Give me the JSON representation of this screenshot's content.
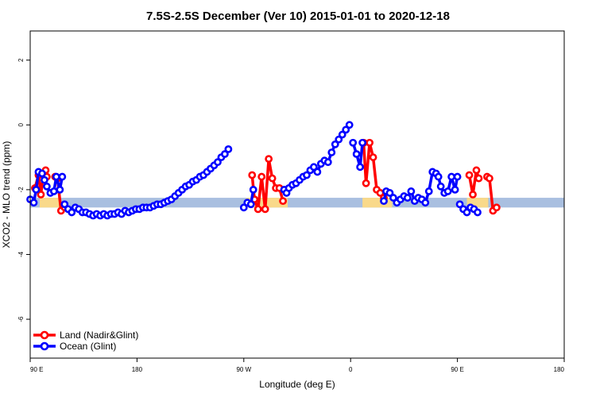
{
  "chart_data": {
    "type": "line",
    "title": "7.5S-2.5S December (Ver 10)   2015-01-01 to 2020-12-18",
    "xlabel": "Longitude (deg E)",
    "ylabel": "XCO2 - MLO trend (ppm)",
    "xlim": [
      90,
      540
    ],
    "ylim": [
      -7.2,
      2.9
    ],
    "xticks": [
      {
        "value": 90,
        "label": "90 E"
      },
      {
        "value": 180,
        "label": "180"
      },
      {
        "value": 270,
        "label": "90 W"
      },
      {
        "value": 360,
        "label": "0"
      },
      {
        "value": 450,
        "label": "90 E"
      },
      {
        "value": 540,
        "label": "180"
      }
    ],
    "yticks": [
      {
        "value": 2,
        "label": "2"
      },
      {
        "value": 0,
        "label": "0"
      },
      {
        "value": -2,
        "label": "-2"
      },
      {
        "value": -4,
        "label": "-4"
      },
      {
        "value": -6,
        "label": "-6"
      }
    ],
    "landmask": {
      "band_y": [
        -2.55,
        -2.25
      ],
      "ocean_color": "#a9bfe0",
      "land_color": "#f9d98a",
      "land_ranges": [
        [
          98,
          116
        ],
        [
          272,
          307
        ],
        [
          370,
          395
        ],
        [
          458,
          476
        ]
      ]
    },
    "series": [
      {
        "name": "Land (Nadir&Glint)",
        "color": "#ff0000",
        "segments": [
          [
            [
              94,
              -1.95
            ],
            [
              97,
              -1.55
            ],
            [
              99,
              -2.15
            ],
            [
              101,
              -1.55
            ],
            [
              103,
              -1.4
            ],
            [
              104,
              -1.6
            ]
          ],
          [
            [
              111,
              -1.6
            ],
            [
              113,
              -1.65
            ],
            [
              116,
              -2.65
            ],
            [
              119,
              -2.55
            ]
          ],
          [
            [
              277,
              -1.55
            ],
            [
              279,
              -2.3
            ],
            [
              282,
              -2.6
            ],
            [
              285,
              -1.6
            ],
            [
              288,
              -2.6
            ],
            [
              291,
              -1.05
            ],
            [
              294,
              -1.65
            ],
            [
              297,
              -1.95
            ],
            [
              300,
              -1.95
            ],
            [
              303,
              -2.35
            ]
          ],
          [
            [
              371,
              -0.55
            ],
            [
              373,
              -1.8
            ],
            [
              376,
              -0.55
            ],
            [
              379,
              -1.0
            ],
            [
              382,
              -2.0
            ],
            [
              385,
              -2.1
            ],
            [
              388,
              -2.25
            ]
          ],
          [
            [
              460,
              -1.55
            ],
            [
              463,
              -2.15
            ],
            [
              466,
              -1.4
            ],
            [
              468,
              -1.65
            ]
          ],
          [
            [
              475,
              -1.6
            ],
            [
              477,
              -1.65
            ],
            [
              480,
              -2.65
            ],
            [
              483,
              -2.55
            ]
          ]
        ]
      },
      {
        "name": "Ocean (Glint)",
        "color": "#0000ff",
        "segments": [
          [
            [
              90,
              -2.3
            ],
            [
              93,
              -2.4
            ],
            [
              95,
              -2.0
            ],
            [
              97,
              -1.45
            ],
            [
              100,
              -1.5
            ],
            [
              102,
              -1.7
            ],
            [
              104,
              -1.9
            ],
            [
              107,
              -2.1
            ],
            [
              110,
              -2.05
            ],
            [
              112,
              -1.6
            ],
            [
              115,
              -2.0
            ],
            [
              117,
              -1.6
            ]
          ],
          [
            [
              119,
              -2.45
            ],
            [
              122,
              -2.6
            ],
            [
              125,
              -2.7
            ],
            [
              128,
              -2.55
            ],
            [
              131,
              -2.6
            ],
            [
              134,
              -2.7
            ],
            [
              137,
              -2.7
            ],
            [
              140,
              -2.75
            ],
            [
              143,
              -2.8
            ],
            [
              146,
              -2.75
            ],
            [
              149,
              -2.8
            ],
            [
              152,
              -2.75
            ],
            [
              155,
              -2.8
            ],
            [
              158,
              -2.75
            ],
            [
              161,
              -2.75
            ],
            [
              164,
              -2.7
            ],
            [
              167,
              -2.75
            ],
            [
              170,
              -2.65
            ],
            [
              173,
              -2.7
            ],
            [
              176,
              -2.65
            ],
            [
              179,
              -2.6
            ],
            [
              182,
              -2.6
            ],
            [
              185,
              -2.55
            ],
            [
              188,
              -2.55
            ],
            [
              191,
              -2.55
            ],
            [
              194,
              -2.5
            ],
            [
              197,
              -2.45
            ],
            [
              200,
              -2.45
            ],
            [
              203,
              -2.4
            ],
            [
              206,
              -2.35
            ],
            [
              209,
              -2.3
            ],
            [
              212,
              -2.2
            ],
            [
              215,
              -2.1
            ],
            [
              218,
              -2.0
            ],
            [
              221,
              -1.9
            ],
            [
              224,
              -1.85
            ],
            [
              227,
              -1.75
            ],
            [
              230,
              -1.7
            ],
            [
              233,
              -1.6
            ],
            [
              236,
              -1.55
            ],
            [
              239,
              -1.45
            ],
            [
              242,
              -1.35
            ],
            [
              245,
              -1.25
            ],
            [
              248,
              -1.15
            ],
            [
              251,
              -1.0
            ],
            [
              254,
              -0.9
            ],
            [
              257,
              -0.75
            ]
          ],
          [
            [
              270,
              -2.55
            ],
            [
              273,
              -2.4
            ],
            [
              276,
              -2.45
            ],
            [
              278,
              -2.0
            ]
          ],
          [
            [
              304,
              -2.0
            ],
            [
              306,
              -2.1
            ],
            [
              308,
              -1.95
            ],
            [
              311,
              -1.85
            ],
            [
              314,
              -1.8
            ],
            [
              317,
              -1.7
            ],
            [
              320,
              -1.6
            ],
            [
              323,
              -1.55
            ],
            [
              326,
              -1.4
            ],
            [
              329,
              -1.3
            ],
            [
              332,
              -1.45
            ],
            [
              335,
              -1.2
            ],
            [
              338,
              -1.1
            ],
            [
              341,
              -1.15
            ],
            [
              344,
              -0.85
            ],
            [
              347,
              -0.6
            ],
            [
              350,
              -0.45
            ],
            [
              353,
              -0.3
            ],
            [
              356,
              -0.15
            ],
            [
              359,
              0.0
            ]
          ],
          [
            [
              362,
              -0.55
            ],
            [
              365,
              -0.9
            ],
            [
              368,
              -1.3
            ],
            [
              370,
              -0.55
            ]
          ],
          [
            [
              388,
              -2.35
            ],
            [
              390,
              -2.05
            ],
            [
              393,
              -2.1
            ],
            [
              396,
              -2.25
            ],
            [
              399,
              -2.4
            ],
            [
              402,
              -2.3
            ],
            [
              405,
              -2.2
            ],
            [
              408,
              -2.25
            ],
            [
              411,
              -2.05
            ],
            [
              414,
              -2.35
            ],
            [
              417,
              -2.25
            ],
            [
              420,
              -2.3
            ],
            [
              423,
              -2.4
            ],
            [
              426,
              -2.05
            ],
            [
              429,
              -1.45
            ],
            [
              432,
              -1.5
            ],
            [
              434,
              -1.6
            ],
            [
              436,
              -1.9
            ],
            [
              439,
              -2.1
            ],
            [
              442,
              -2.05
            ],
            [
              445,
              -1.6
            ],
            [
              448,
              -2.0
            ],
            [
              450,
              -1.6
            ]
          ],
          [
            [
              452,
              -2.45
            ],
            [
              455,
              -2.6
            ],
            [
              458,
              -2.7
            ],
            [
              461,
              -2.55
            ],
            [
              464,
              -2.6
            ],
            [
              467,
              -2.7
            ]
          ]
        ]
      }
    ],
    "legend": {
      "position": "bottom-left",
      "items": [
        {
          "label": "Land (Nadir&Glint)",
          "color": "#ff0000"
        },
        {
          "label": "Ocean (Glint)",
          "color": "#0000ff"
        }
      ]
    }
  }
}
